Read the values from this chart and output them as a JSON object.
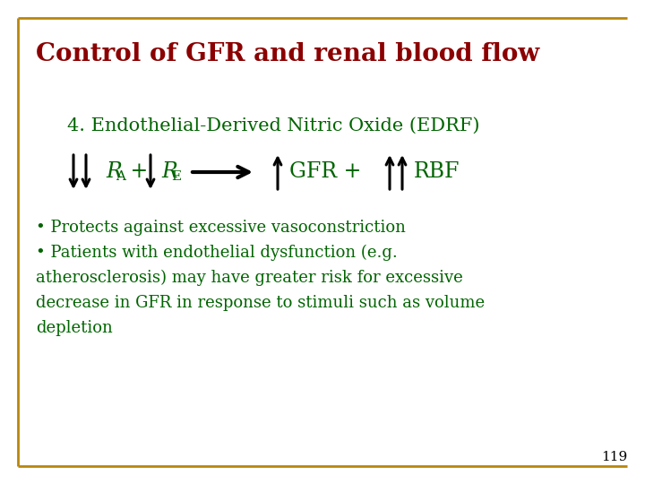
{
  "title": "Control of GFR and renal blood flow",
  "title_color": "#8B0000",
  "subtitle": "4. Endothelial-Derived Nitric Oxide (EDRF)",
  "subtitle_color": "#006400",
  "body_color": "#006400",
  "arrow_color": "#000000",
  "border_color": "#B8860B",
  "slide_number": "119",
  "slide_number_color": "#000000",
  "background_color": "#FFFFFF",
  "bullet_lines": [
    "• Protects against excessive vasoconstriction",
    "• Patients with endothelial dysfunction (e.g.",
    "atherosclerosis) may have greater risk for excessive",
    "decrease in GFR in response to stimuli such as volume",
    "depletion"
  ],
  "fig_width": 7.2,
  "fig_height": 5.4,
  "dpi": 100
}
